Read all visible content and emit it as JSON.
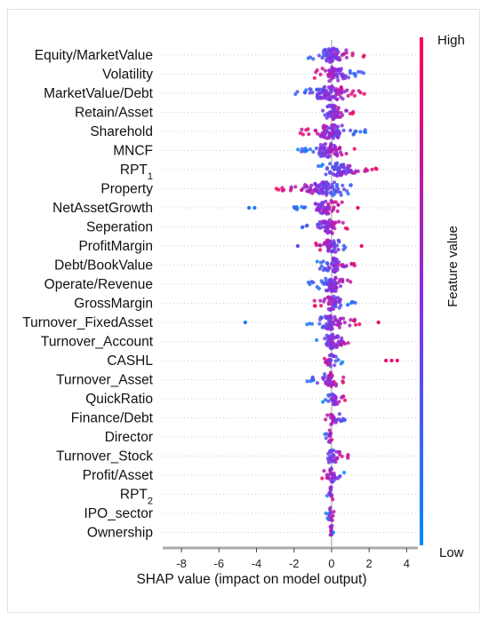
{
  "chart_data": {
    "type": "scatter",
    "subtype": "shap-beeswarm",
    "xlabel": "SHAP value (impact on model output)",
    "xlim": [
      -9,
      4.6
    ],
    "xticks": [
      -8,
      -6,
      -4,
      -2,
      0,
      2,
      4
    ],
    "grid": false,
    "colorbar": {
      "label": "Feature value",
      "high_label": "High",
      "low_label": "Low",
      "high_color": "#ff0052",
      "low_color": "#008bfb"
    },
    "features": [
      {
        "name": "Equity/MarketValue",
        "sub": "",
        "min": -1.4,
        "max": 1.8,
        "outliers": []
      },
      {
        "name": "Volatility",
        "sub": "",
        "min": -1.0,
        "max": 1.8,
        "outliers": []
      },
      {
        "name": "MarketValue/Debt",
        "sub": "",
        "min": -2.0,
        "max": 1.8,
        "outliers": []
      },
      {
        "name": "Retain/Asset",
        "sub": "",
        "min": -1.0,
        "max": 1.3,
        "outliers": []
      },
      {
        "name": "Sharehold",
        "sub": "",
        "min": -1.8,
        "max": 1.9,
        "outliers": []
      },
      {
        "name": "MNCF",
        "sub": "",
        "min": -1.8,
        "max": 1.4,
        "outliers": []
      },
      {
        "name": "RPT",
        "sub": "1",
        "min": -0.8,
        "max": 2.4,
        "outliers": []
      },
      {
        "name": "Property",
        "sub": "",
        "min": -3.0,
        "max": 1.3,
        "outliers": []
      },
      {
        "name": "NetAssetGrowth",
        "sub": "",
        "min": -2.0,
        "max": 0.8,
        "outliers": [
          -4.4,
          -4.1,
          1.4
        ]
      },
      {
        "name": "Seperation",
        "sub": "",
        "min": -1.6,
        "max": 0.9,
        "outliers": []
      },
      {
        "name": "ProfitMargin",
        "sub": "",
        "min": -1.0,
        "max": 1.0,
        "outliers": [
          -1.8,
          1.6
        ]
      },
      {
        "name": "Debt/BookValue",
        "sub": "",
        "min": -0.9,
        "max": 1.4,
        "outliers": []
      },
      {
        "name": "Operate/Revenue",
        "sub": "",
        "min": -1.3,
        "max": 1.5,
        "outliers": []
      },
      {
        "name": "GrossMargin",
        "sub": "",
        "min": -1.0,
        "max": 1.3,
        "outliers": []
      },
      {
        "name": "Turnover_FixedAsset",
        "sub": "",
        "min": -1.4,
        "max": 1.5,
        "outliers": [
          -4.6,
          2.5
        ]
      },
      {
        "name": "Turnover_Account",
        "sub": "",
        "min": -1.0,
        "max": 1.3,
        "outliers": []
      },
      {
        "name": "CASHL",
        "sub": "",
        "min": -0.6,
        "max": 0.6,
        "outliers": [
          2.9,
          3.2,
          3.5
        ]
      },
      {
        "name": "Turnover_Asset",
        "sub": "",
        "min": -1.3,
        "max": 0.7,
        "outliers": []
      },
      {
        "name": "QuickRatio",
        "sub": "",
        "min": -0.5,
        "max": 0.8,
        "outliers": []
      },
      {
        "name": "Finance/Debt",
        "sub": "",
        "min": -0.4,
        "max": 0.8,
        "outliers": []
      },
      {
        "name": "Director",
        "sub": "",
        "min": -0.4,
        "max": 0.1,
        "outliers": []
      },
      {
        "name": "Turnover_Stock",
        "sub": "",
        "min": -0.5,
        "max": 0.9,
        "outliers": []
      },
      {
        "name": "Profit/Asset",
        "sub": "",
        "min": -0.6,
        "max": 0.7,
        "outliers": []
      },
      {
        "name": "RPT",
        "sub": "2",
        "min": -0.3,
        "max": 0.2,
        "outliers": []
      },
      {
        "name": "IPO_sector",
        "sub": "",
        "min": -0.3,
        "max": 0.2,
        "outliers": []
      },
      {
        "name": "Ownership",
        "sub": "",
        "min": -0.1,
        "max": 0.1,
        "outliers": []
      }
    ]
  }
}
